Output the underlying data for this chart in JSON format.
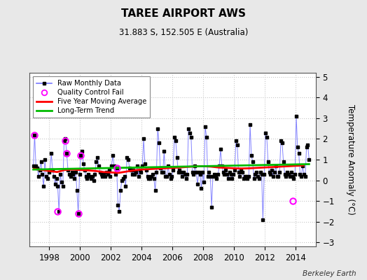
{
  "title": "TAREE AIRPORT AWS",
  "subtitle": "31.883 S, 152.505 E (Australia)",
  "ylabel": "Temperature Anomaly (°C)",
  "credit": "Berkeley Earth",
  "xlim": [
    1996.7,
    2015.3
  ],
  "ylim": [
    -3.2,
    5.2
  ],
  "yticks": [
    -3,
    -2,
    -1,
    0,
    1,
    2,
    3,
    4,
    5
  ],
  "xticks": [
    1998,
    2000,
    2002,
    2004,
    2006,
    2008,
    2010,
    2012,
    2014
  ],
  "raw_data": {
    "times": [
      1996.958,
      1997.042,
      1997.125,
      1997.208,
      1997.292,
      1997.375,
      1997.458,
      1997.542,
      1997.625,
      1997.708,
      1997.792,
      1997.875,
      1997.958,
      1998.042,
      1998.125,
      1998.208,
      1998.292,
      1998.375,
      1998.458,
      1998.542,
      1998.625,
      1998.708,
      1998.792,
      1998.875,
      1998.958,
      1999.042,
      1999.125,
      1999.208,
      1999.292,
      1999.375,
      1999.458,
      1999.542,
      1999.625,
      1999.708,
      1999.792,
      1999.875,
      1999.958,
      2000.042,
      2000.125,
      2000.208,
      2000.292,
      2000.375,
      2000.458,
      2000.542,
      2000.625,
      2000.708,
      2000.792,
      2000.875,
      2000.958,
      2001.042,
      2001.125,
      2001.208,
      2001.292,
      2001.375,
      2001.458,
      2001.542,
      2001.625,
      2001.708,
      2001.792,
      2001.875,
      2001.958,
      2002.042,
      2002.125,
      2002.208,
      2002.292,
      2002.375,
      2002.458,
      2002.542,
      2002.625,
      2002.708,
      2002.792,
      2002.875,
      2002.958,
      2003.042,
      2003.125,
      2003.208,
      2003.292,
      2003.375,
      2003.458,
      2003.542,
      2003.625,
      2003.708,
      2003.792,
      2003.875,
      2003.958,
      2004.042,
      2004.125,
      2004.208,
      2004.292,
      2004.375,
      2004.458,
      2004.542,
      2004.625,
      2004.708,
      2004.792,
      2004.875,
      2004.958,
      2005.042,
      2005.125,
      2005.208,
      2005.292,
      2005.375,
      2005.458,
      2005.542,
      2005.625,
      2005.708,
      2005.792,
      2005.875,
      2005.958,
      2006.042,
      2006.125,
      2006.208,
      2006.292,
      2006.375,
      2006.458,
      2006.542,
      2006.625,
      2006.708,
      2006.792,
      2006.875,
      2006.958,
      2007.042,
      2007.125,
      2007.208,
      2007.292,
      2007.375,
      2007.458,
      2007.542,
      2007.625,
      2007.708,
      2007.792,
      2007.875,
      2007.958,
      2008.042,
      2008.125,
      2008.208,
      2008.292,
      2008.375,
      2008.458,
      2008.542,
      2008.625,
      2008.708,
      2008.792,
      2008.875,
      2008.958,
      2009.042,
      2009.125,
      2009.208,
      2009.292,
      2009.375,
      2009.458,
      2009.542,
      2009.625,
      2009.708,
      2009.792,
      2009.875,
      2009.958,
      2010.042,
      2010.125,
      2010.208,
      2010.292,
      2010.375,
      2010.458,
      2010.542,
      2010.625,
      2010.708,
      2010.792,
      2010.875,
      2010.958,
      2011.042,
      2011.125,
      2011.208,
      2011.292,
      2011.375,
      2011.458,
      2011.542,
      2011.625,
      2011.708,
      2011.792,
      2011.875,
      2011.958,
      2012.042,
      2012.125,
      2012.208,
      2012.292,
      2012.375,
      2012.458,
      2012.542,
      2012.625,
      2012.708,
      2012.792,
      2012.875,
      2012.958,
      2013.042,
      2013.125,
      2013.208,
      2013.292,
      2013.375,
      2013.458,
      2013.542,
      2013.625,
      2013.708,
      2013.792,
      2013.875,
      2013.958,
      2014.042,
      2014.125,
      2014.208,
      2014.292,
      2014.375,
      2014.458,
      2014.542,
      2014.625,
      2014.708,
      2014.792,
      2014.875
    ],
    "values": [
      0.7,
      2.2,
      0.7,
      0.6,
      0.2,
      0.5,
      0.9,
      0.3,
      -0.3,
      1.0,
      0.2,
      0.1,
      0.4,
      0.5,
      1.3,
      0.5,
      0.2,
      -0.2,
      0.1,
      -0.3,
      -1.5,
      0.3,
      -0.1,
      -0.3,
      1.9,
      2.0,
      1.3,
      0.5,
      0.3,
      0.2,
      0.4,
      0.3,
      0.1,
      0.4,
      -0.5,
      -1.6,
      0.3,
      1.2,
      1.4,
      0.8,
      0.5,
      0.2,
      0.1,
      0.3,
      0.2,
      0.1,
      0.2,
      0.0,
      0.3,
      0.9,
      1.1,
      0.7,
      0.4,
      0.3,
      0.2,
      0.3,
      0.2,
      0.4,
      0.3,
      0.5,
      0.2,
      0.7,
      1.2,
      0.7,
      0.3,
      0.6,
      -1.2,
      -1.5,
      -0.5,
      0.0,
      0.1,
      0.2,
      -0.3,
      1.1,
      1.0,
      0.6,
      0.5,
      0.3,
      0.5,
      0.3,
      0.4,
      0.7,
      0.2,
      0.5,
      0.4,
      0.7,
      2.0,
      0.8,
      0.5,
      0.2,
      0.1,
      0.1,
      0.2,
      0.3,
      0.1,
      -0.5,
      0.4,
      2.5,
      1.8,
      0.6,
      0.4,
      0.4,
      1.4,
      0.2,
      0.2,
      0.7,
      0.3,
      0.1,
      0.2,
      0.5,
      2.1,
      1.9,
      1.1,
      0.4,
      0.5,
      0.4,
      0.2,
      0.4,
      0.3,
      0.1,
      0.3,
      2.5,
      2.3,
      2.1,
      0.4,
      0.3,
      0.7,
      0.4,
      -0.2,
      0.4,
      0.3,
      -0.4,
      0.4,
      -0.1,
      2.6,
      2.1,
      0.2,
      0.4,
      0.2,
      -1.3,
      0.2,
      0.3,
      0.2,
      0.1,
      0.3,
      0.7,
      1.5,
      0.7,
      0.4,
      0.3,
      0.5,
      0.3,
      0.1,
      0.4,
      0.3,
      0.1,
      0.3,
      0.5,
      1.9,
      1.7,
      0.4,
      0.2,
      0.5,
      0.4,
      0.1,
      0.2,
      0.2,
      0.1,
      0.2,
      2.7,
      1.2,
      0.9,
      0.1,
      0.3,
      0.4,
      0.2,
      0.1,
      0.4,
      0.3,
      -1.9,
      0.3,
      2.3,
      2.1,
      0.9,
      0.4,
      0.3,
      0.5,
      0.2,
      0.4,
      0.7,
      0.2,
      0.2,
      0.4,
      1.9,
      1.8,
      0.9,
      0.3,
      0.2,
      0.4,
      0.3,
      0.2,
      0.4,
      0.2,
      0.1,
      0.3,
      3.1,
      1.6,
      1.3,
      0.3,
      0.2,
      0.7,
      0.3,
      0.2,
      1.6,
      1.7,
      1.0
    ]
  },
  "qc_fail_times": [
    1997.042,
    1998.542,
    1999.042,
    1999.125,
    1999.875,
    2000.042,
    2002.375,
    2013.792
  ],
  "qc_fail_values": [
    2.2,
    -1.5,
    1.9,
    1.3,
    -1.6,
    1.2,
    0.6,
    -1.0
  ],
  "moving_avg_times": [
    1997.0,
    1997.5,
    1998.0,
    1998.5,
    1999.0,
    1999.5,
    2000.0,
    2000.5,
    2001.0,
    2001.5,
    2002.0,
    2002.5,
    2003.0,
    2003.5,
    2004.0,
    2004.5,
    2005.0,
    2005.5,
    2006.0,
    2006.5,
    2007.0,
    2007.5,
    2008.0,
    2008.5,
    2009.0,
    2009.5,
    2010.0,
    2010.5,
    2011.0,
    2011.5,
    2012.0,
    2012.5,
    2013.0,
    2013.5,
    2014.0,
    2014.5
  ],
  "moving_avg_values": [
    0.55,
    0.5,
    0.45,
    0.4,
    0.5,
    0.52,
    0.5,
    0.48,
    0.45,
    0.4,
    0.38,
    0.36,
    0.42,
    0.48,
    0.52,
    0.54,
    0.56,
    0.58,
    0.6,
    0.62,
    0.65,
    0.67,
    0.68,
    0.66,
    0.62,
    0.6,
    0.58,
    0.57,
    0.58,
    0.6,
    0.62,
    0.64,
    0.66,
    0.68,
    0.7,
    0.72
  ],
  "trend_times": [
    1996.958,
    2014.875
  ],
  "trend_values": [
    0.52,
    0.78
  ],
  "colors": {
    "raw_line": "#7777ff",
    "raw_marker": "#000000",
    "qc_fail": "#ff00ff",
    "moving_avg": "#ff0000",
    "trend": "#00bb00",
    "background": "#e8e8e8",
    "plot_bg": "#ffffff",
    "grid": "#c8c8c8"
  },
  "figsize": [
    5.24,
    4.0
  ],
  "dpi": 100
}
